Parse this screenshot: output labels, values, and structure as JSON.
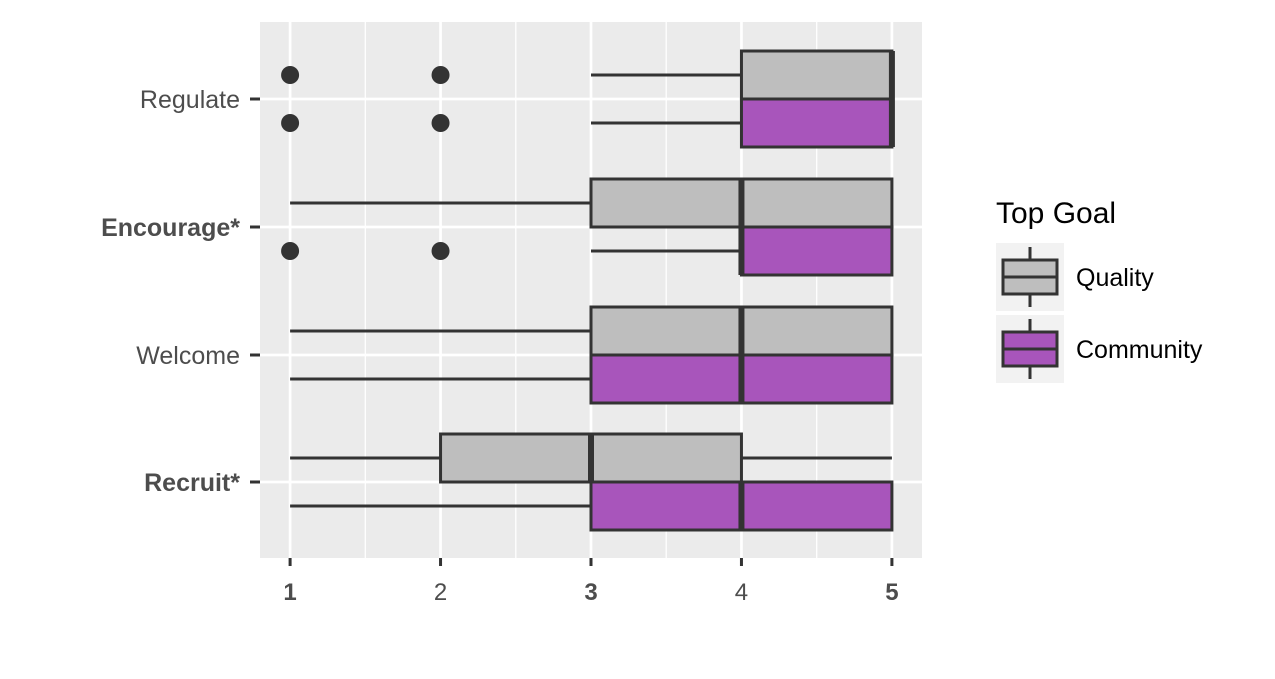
{
  "chart_data": {
    "type": "boxplot",
    "orientation": "horizontal",
    "xlim": [
      0.8,
      5.2
    ],
    "x_ticks": [
      {
        "value": 1,
        "label": "1",
        "bold": true
      },
      {
        "value": 2,
        "label": "2",
        "bold": false
      },
      {
        "value": 3,
        "label": "3",
        "bold": true
      },
      {
        "value": 4,
        "label": "4",
        "bold": false
      },
      {
        "value": 5,
        "label": "5",
        "bold": true
      }
    ],
    "categories": [
      {
        "label": "Regulate",
        "bold": false
      },
      {
        "label": "Encourage*",
        "bold": true
      },
      {
        "label": "Welcome",
        "bold": false
      },
      {
        "label": "Recruit*",
        "bold": true
      }
    ],
    "series": [
      {
        "name": "Quality",
        "color": "#bebebe",
        "boxes": [
          {
            "min": 3,
            "q1": 4,
            "median": 5,
            "q3": 5,
            "max": 5,
            "outliers": [
              1,
              2
            ]
          },
          {
            "min": 1,
            "q1": 3,
            "median": 4,
            "q3": 5,
            "max": 5,
            "outliers": []
          },
          {
            "min": 1,
            "q1": 3,
            "median": 4,
            "q3": 5,
            "max": 5,
            "outliers": []
          },
          {
            "min": 1,
            "q1": 2,
            "median": 3,
            "q3": 4,
            "max": 5,
            "outliers": []
          }
        ]
      },
      {
        "name": "Community",
        "color": "#a855bb",
        "boxes": [
          {
            "min": 3,
            "q1": 4,
            "median": 5,
            "q3": 5,
            "max": 5,
            "outliers": [
              1,
              2
            ]
          },
          {
            "min": 3,
            "q1": 4,
            "median": 4,
            "q3": 5,
            "max": 5,
            "outliers": [
              1,
              2
            ]
          },
          {
            "min": 1,
            "q1": 3,
            "median": 4,
            "q3": 5,
            "max": 5,
            "outliers": []
          },
          {
            "min": 1,
            "q1": 3,
            "median": 4,
            "q3": 5,
            "max": 5,
            "outliers": []
          }
        ]
      }
    ],
    "legend": {
      "title": "Top Goal",
      "position": "right"
    },
    "grid": true
  }
}
